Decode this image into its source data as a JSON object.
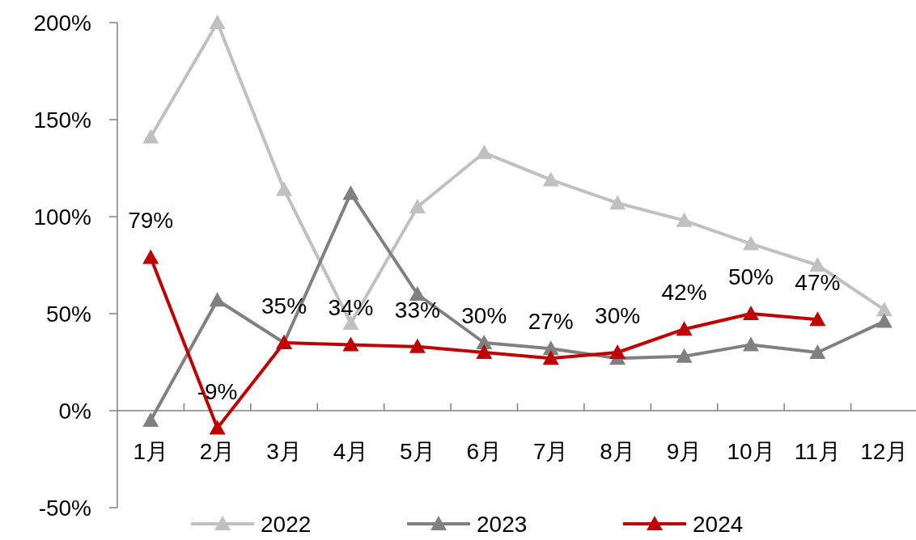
{
  "chart_data": {
    "type": "line",
    "categories": [
      "1月",
      "2月",
      "3月",
      "4月",
      "5月",
      "6月",
      "7月",
      "8月",
      "9月",
      "10月",
      "11月",
      "12月"
    ],
    "series": [
      {
        "name": "2022",
        "color": "#c0c0c0",
        "values": [
          141,
          200,
          114,
          45,
          105,
          133,
          119,
          107,
          98,
          86,
          75,
          52
        ]
      },
      {
        "name": "2023",
        "color": "#808080",
        "values": [
          -5,
          57,
          35,
          112,
          60,
          35,
          32,
          27,
          28,
          34,
          30,
          46
        ]
      },
      {
        "name": "2024",
        "color": "#c00000",
        "data_labels": true,
        "value_labels": [
          "79%",
          "-9%",
          "35%",
          "34%",
          "33%",
          "30%",
          "27%",
          "30%",
          "42%",
          "50%",
          "47%",
          null
        ],
        "values": [
          79,
          -9,
          35,
          34,
          33,
          30,
          27,
          30,
          42,
          50,
          47,
          null
        ]
      }
    ],
    "ylim": [
      -50,
      200
    ],
    "yticks": [
      {
        "value": -50,
        "label": "-50%"
      },
      {
        "value": 0,
        "label": "0%"
      },
      {
        "value": 50,
        "label": "50%"
      },
      {
        "value": 100,
        "label": "100%"
      },
      {
        "value": 150,
        "label": "150%"
      },
      {
        "value": 200,
        "label": "200%"
      }
    ],
    "marker": "triangle",
    "legend": "bottom"
  }
}
